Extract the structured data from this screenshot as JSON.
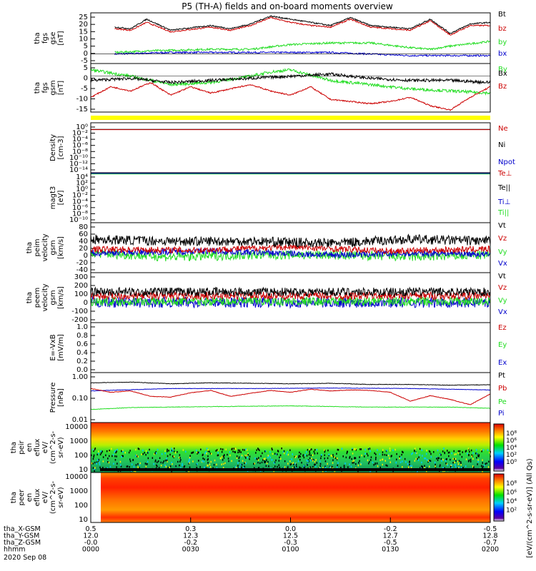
{
  "title": "P5 (TH-A) fields and on-board moments overview",
  "colors": {
    "black": "#000000",
    "red": "#cc0000",
    "green": "#22dd22",
    "blue": "#0000cc",
    "yellow": "#ffff00",
    "bar_red": "#cc0000",
    "bar_green": "#22bb22",
    "bar_blue": "#0000cc"
  },
  "chart_data": [
    {
      "type": "line",
      "name": "fgs_gse",
      "ylabel": [
        "tha",
        "fgs",
        "gse",
        "[nT]"
      ],
      "ylim": [
        -6,
        26
      ],
      "ticks": [
        "25",
        "20",
        "15",
        "10",
        "5",
        "0",
        "-5"
      ],
      "legend": [
        {
          "label": "Bt",
          "color": "black"
        },
        {
          "label": "bz",
          "color": "red"
        },
        {
          "label": "by",
          "color": "green"
        },
        {
          "label": "bx",
          "color": "blue"
        }
      ],
      "series": [
        {
          "color": "blue",
          "noise": 0.5,
          "x": [
            0.06,
            0.2,
            0.35,
            0.5,
            0.6,
            0.7,
            0.8,
            0.9,
            1.0
          ],
          "y": [
            0,
            1,
            1,
            1,
            1,
            0,
            -1,
            -1,
            -1
          ]
        },
        {
          "color": "green",
          "noise": 0.6,
          "x": [
            0.06,
            0.15,
            0.3,
            0.4,
            0.5,
            0.6,
            0.7,
            0.8,
            0.85,
            0.9,
            1.0
          ],
          "y": [
            1,
            2,
            3,
            3,
            6,
            7,
            7,
            4,
            3,
            5,
            8
          ]
        },
        {
          "color": "red",
          "noise": 0.4,
          "x": [
            0.06,
            0.1,
            0.14,
            0.2,
            0.3,
            0.35,
            0.4,
            0.45,
            0.5,
            0.55,
            0.6,
            0.65,
            0.7,
            0.75,
            0.8,
            0.85,
            0.9,
            0.95,
            1.0
          ],
          "y": [
            16,
            15,
            20,
            14,
            17,
            15,
            18,
            23,
            20,
            18,
            17,
            22,
            17,
            16,
            15,
            21,
            12,
            18,
            18
          ]
        },
        {
          "color": "black",
          "noise": 0.4,
          "x": [
            0.06,
            0.1,
            0.14,
            0.2,
            0.3,
            0.35,
            0.4,
            0.45,
            0.5,
            0.55,
            0.6,
            0.65,
            0.7,
            0.75,
            0.8,
            0.85,
            0.9,
            0.95,
            1.0
          ],
          "y": [
            17,
            16,
            22,
            15,
            18,
            16,
            19,
            24,
            22,
            20,
            18,
            23,
            18,
            17,
            16,
            22,
            13,
            19,
            20
          ]
        }
      ]
    },
    {
      "type": "line",
      "name": "fgs_gsm",
      "ylabel": [
        "tha",
        "fgs",
        "gsm",
        "[nT]"
      ],
      "ylim": [
        -17,
        6
      ],
      "ticks": [
        "5",
        "0",
        "-5",
        "-10",
        "-15"
      ],
      "legend": [
        {
          "label": "By",
          "color": "green"
        },
        {
          "label": "Bx",
          "color": "black"
        },
        {
          "label": "Bz",
          "color": "red"
        }
      ],
      "series": [
        {
          "color": "green",
          "noise": 0.7,
          "x": [
            0.0,
            0.1,
            0.2,
            0.3,
            0.4,
            0.45,
            0.5,
            0.6,
            0.7,
            0.8,
            0.9,
            1.0
          ],
          "y": [
            3,
            0,
            -4,
            -3,
            0,
            2,
            3,
            -2,
            -4,
            -6,
            -7,
            -8
          ]
        },
        {
          "color": "black",
          "noise": 0.7,
          "x": [
            0.0,
            0.1,
            0.2,
            0.3,
            0.4,
            0.5,
            0.6,
            0.7,
            0.8,
            0.9,
            1.0
          ],
          "y": [
            -2,
            -1,
            -3,
            -2,
            -1,
            0,
            1,
            -1,
            -2,
            -2,
            -3
          ]
        },
        {
          "color": "red",
          "noise": 0.3,
          "x": [
            0.0,
            0.05,
            0.1,
            0.15,
            0.2,
            0.25,
            0.3,
            0.35,
            0.4,
            0.45,
            0.5,
            0.55,
            0.6,
            0.65,
            0.7,
            0.75,
            0.8,
            0.85,
            0.9,
            0.95,
            1.0
          ],
          "y": [
            -10,
            -5,
            -7,
            -3,
            -9,
            -5,
            -8,
            -6,
            -4,
            -7,
            -9,
            -5,
            -11,
            -12,
            -13,
            -12,
            -10,
            -14,
            -16,
            -10,
            -5
          ]
        }
      ]
    },
    {
      "type": "line",
      "name": "density",
      "ylabel": [
        "Density",
        "[cm-3]"
      ],
      "ylim": [
        -14,
        2
      ],
      "ticks": [
        "10⁰",
        "10⁻²",
        "10⁻⁴",
        "10⁻⁶",
        "10⁻⁸",
        "10⁻¹⁰",
        "10⁻¹²",
        "10⁻¹⁴"
      ],
      "legend": [
        {
          "label": "Ne",
          "color": "red"
        },
        {
          "label": "Ni",
          "color": "black"
        },
        {
          "label": "Npot",
          "color": "blue"
        }
      ],
      "series": [
        {
          "color": "black",
          "noise": 0.0,
          "x": [
            0,
            1
          ],
          "y": [
            -0.1,
            -0.1
          ]
        },
        {
          "color": "red",
          "noise": 0.0,
          "x": [
            0,
            1
          ],
          "y": [
            -0.2,
            -0.2
          ]
        }
      ]
    },
    {
      "type": "line",
      "name": "temperature",
      "ylabel": [
        "magt3",
        "[eV]"
      ],
      "ylim": [
        -10,
        6
      ],
      "ticks": [
        "10⁴",
        "10²",
        "10⁰",
        "10⁻²",
        "10⁻⁴",
        "10⁻⁶",
        "10⁻⁸",
        "10⁻¹⁰"
      ],
      "legend": [
        {
          "label": "Te⊥",
          "color": "red"
        },
        {
          "label": "Te||",
          "color": "black"
        },
        {
          "label": "Ti⊥",
          "color": "blue"
        },
        {
          "label": "Ti||",
          "color": "green"
        }
      ],
      "series": [
        {
          "color": "black",
          "noise": 0.0,
          "x": [
            0.06,
            1
          ],
          "y": [
            5.3,
            5.3
          ]
        },
        {
          "color": "green",
          "noise": 0.0,
          "x": [
            0,
            1
          ],
          "y": [
            5.6,
            5.6
          ]
        },
        {
          "color": "blue",
          "noise": 0.0,
          "x": [
            0,
            1
          ],
          "y": [
            5.8,
            5.8
          ]
        }
      ]
    },
    {
      "type": "line",
      "name": "peim_velocity",
      "ylabel": [
        "tha",
        "peim",
        "velocity",
        "gsm",
        "[km/s]"
      ],
      "ylim": [
        -45,
        82
      ],
      "ticks": [
        "80",
        "60",
        "40",
        "20",
        "0",
        "-20",
        "-40"
      ],
      "legend": [
        {
          "label": "Vt",
          "color": "black"
        },
        {
          "label": "Vz",
          "color": "red"
        },
        {
          "label": "Vy",
          "color": "green"
        },
        {
          "label": "Vx",
          "color": "blue"
        }
      ],
      "series": [
        {
          "color": "green",
          "noise": 12,
          "x": [
            0,
            0.2,
            0.4,
            0.6,
            0.8,
            1
          ],
          "y": [
            5,
            -5,
            0,
            0,
            -5,
            0
          ]
        },
        {
          "color": "blue",
          "noise": 8,
          "x": [
            0,
            0.3,
            0.6,
            0.9,
            1
          ],
          "y": [
            5,
            10,
            0,
            5,
            0
          ]
        },
        {
          "color": "red",
          "noise": 8,
          "x": [
            0,
            0.25,
            0.5,
            0.75,
            1
          ],
          "y": [
            15,
            12,
            20,
            10,
            15
          ]
        },
        {
          "color": "black",
          "noise": 12,
          "x": [
            0,
            0.2,
            0.4,
            0.6,
            0.8,
            1
          ],
          "y": [
            40,
            35,
            35,
            30,
            40,
            35
          ]
        }
      ]
    },
    {
      "type": "line",
      "name": "peem_velocity",
      "ylabel": [
        "tha",
        "peem",
        "velocity",
        "gsm",
        "[km/s]"
      ],
      "ylim": [
        -210,
        310
      ],
      "ticks": [
        "300",
        "200",
        "100",
        "0",
        "-100",
        "-200"
      ],
      "legend": [
        {
          "label": "Vt",
          "color": "black"
        },
        {
          "label": "Vz",
          "color": "red"
        },
        {
          "label": "Vy",
          "color": "green"
        },
        {
          "label": "Vx",
          "color": "blue"
        }
      ],
      "series": [
        {
          "color": "blue",
          "noise": 55,
          "x": [
            0,
            1
          ],
          "y": [
            0,
            0
          ]
        },
        {
          "color": "green",
          "noise": 45,
          "x": [
            0,
            1
          ],
          "y": [
            10,
            10
          ]
        },
        {
          "color": "red",
          "noise": 40,
          "x": [
            0,
            1
          ],
          "y": [
            70,
            70
          ]
        },
        {
          "color": "black",
          "noise": 45,
          "x": [
            0,
            1
          ],
          "y": [
            110,
            110
          ]
        }
      ]
    },
    {
      "type": "line",
      "name": "e_field",
      "ylabel": [
        "E=-VxB",
        "[mV/m]"
      ],
      "ylim": [
        0,
        1
      ],
      "ticks": [
        "1.0",
        "0.8",
        "0.6",
        "0.4",
        "0.2",
        "0.0"
      ],
      "legend": [
        {
          "label": "Ez",
          "color": "red"
        },
        {
          "label": "Ey",
          "color": "green"
        },
        {
          "label": "Ex",
          "color": "blue"
        }
      ],
      "series": []
    },
    {
      "type": "line",
      "name": "pressure",
      "ylabel": [
        "Pressure",
        "[nPa]"
      ],
      "ylim": [
        -2.05,
        0.05
      ],
      "ticks": [
        "1.00",
        "0.10",
        "0.01"
      ],
      "legend": [
        {
          "label": "Pt",
          "color": "black"
        },
        {
          "label": "Pb",
          "color": "red"
        },
        {
          "label": "Pe",
          "color": "green"
        },
        {
          "label": "Pi",
          "color": "blue"
        }
      ],
      "series": [
        {
          "color": "green",
          "noise": 0.01,
          "x": [
            0,
            0.1,
            0.3,
            0.5,
            0.7,
            0.9,
            1
          ],
          "y": [
            -1.5,
            -1.42,
            -1.38,
            -1.35,
            -1.4,
            -1.4,
            -1.45
          ]
        },
        {
          "color": "blue",
          "noise": 0.008,
          "x": [
            0,
            0.2,
            0.4,
            0.6,
            0.8,
            1
          ],
          "y": [
            -0.72,
            -0.62,
            -0.62,
            -0.6,
            -0.62,
            -0.68
          ]
        },
        {
          "color": "red",
          "noise": 0.01,
          "x": [
            0,
            0.05,
            0.1,
            0.15,
            0.2,
            0.25,
            0.3,
            0.35,
            0.4,
            0.45,
            0.5,
            0.55,
            0.6,
            0.65,
            0.7,
            0.75,
            0.8,
            0.85,
            0.9,
            0.95,
            1
          ],
          "y": [
            -0.62,
            -0.78,
            -0.72,
            -0.95,
            -0.98,
            -0.8,
            -0.7,
            -0.95,
            -0.82,
            -0.7,
            -0.78,
            -0.65,
            -0.72,
            -0.68,
            -0.7,
            -0.78,
            -1.15,
            -0.92,
            -1.08,
            -1.3,
            -0.85
          ]
        },
        {
          "color": "black",
          "noise": 0.01,
          "x": [
            0,
            0.1,
            0.2,
            0.3,
            0.4,
            0.5,
            0.6,
            0.7,
            0.8,
            0.9,
            1
          ],
          "y": [
            -0.38,
            -0.35,
            -0.42,
            -0.38,
            -0.4,
            -0.42,
            -0.4,
            -0.45,
            -0.45,
            -0.48,
            -0.46
          ]
        }
      ]
    },
    {
      "type": "heatmap",
      "name": "peir_en_eflux",
      "ylabel": [
        "tha",
        "peir",
        "en",
        "eflux",
        "eV/",
        "(cm^2-s-",
        "sr-eV)"
      ],
      "ticks": [
        "10000",
        "1000",
        "100",
        "10"
      ],
      "colorbar_ticks": [
        "10⁸",
        "10⁶",
        "10⁴",
        "10²",
        "10⁰"
      ]
    },
    {
      "type": "heatmap",
      "name": "peer_en_eflux",
      "ylabel": [
        "tha",
        "peer",
        "en",
        "eflux",
        "eV/",
        "(cm^2-s-",
        "sr-eV)"
      ],
      "ticks": [
        "10000",
        "1000",
        "100",
        "10"
      ],
      "colorbar_ticks": [
        "10⁸",
        "10⁶",
        "10⁴",
        "10²"
      ]
    }
  ],
  "colorbar_label": "[eV/(cm^2-s-sr-eV)] (All Qs)",
  "xaxis": {
    "rows": [
      {
        "label": "tha_X-GSM",
        "values": [
          "0.5",
          "0.3",
          "0.0",
          "-0.2",
          "-0.5"
        ]
      },
      {
        "label": "tha_Y-GSM",
        "values": [
          "12.0",
          "12.3",
          "12.5",
          "12.7",
          "12.8"
        ]
      },
      {
        "label": "tha_Z-GSM",
        "values": [
          "-0.0",
          "-0.2",
          "-0.3",
          "-0.5",
          "-0.7"
        ]
      },
      {
        "label": "hhmm",
        "values": [
          "0000",
          "0030",
          "0100",
          "0130",
          "0200"
        ]
      }
    ],
    "date": "2020 Sep 08"
  }
}
